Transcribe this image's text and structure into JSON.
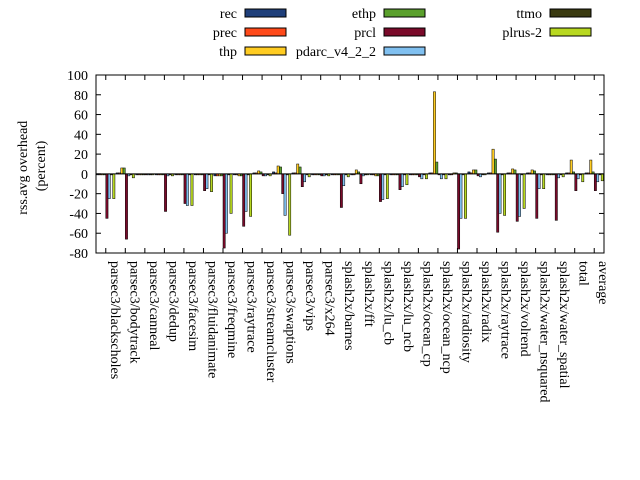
{
  "chart_data": {
    "type": "bar",
    "ylabel": "rss.avg overhead\n(percent)",
    "xlabel": "",
    "title": "",
    "ylim": [
      -80,
      100
    ],
    "yticks": [
      -80,
      -60,
      -40,
      -20,
      0,
      20,
      40,
      60,
      80,
      100
    ],
    "grid": false,
    "legend_position": "top",
    "categories": [
      "parsec3/blackscholes",
      "parsec3/bodytrack",
      "parsec3/canneal",
      "parsec3/dedup",
      "parsec3/facesim",
      "parsec3/fluidanimate",
      "parsec3/freqmine",
      "parsec3/raytrace",
      "parsec3/streamcluster",
      "parsec3/swaptions",
      "parsec3/vips",
      "parsec3/x264",
      "splash2x/barnes",
      "splash2x/fft",
      "splash2x/lu_cb",
      "splash2x/lu_ncb",
      "splash2x/ocean_cp",
      "splash2x/ocean_ncp",
      "splash2x/radiosity",
      "splash2x/radix",
      "splash2x/raytrace",
      "splash2x/volrend",
      "splash2x/water_nsquared",
      "splash2x/water_spatial",
      "total",
      "average"
    ],
    "series": [
      {
        "name": "rec",
        "color": "#1f3f7a",
        "values": [
          -1,
          1,
          -1,
          -1,
          -1,
          -1,
          -2,
          -1,
          1,
          2,
          1,
          -1,
          -1,
          -1,
          -1,
          -1,
          -1,
          1,
          -1,
          2,
          1,
          1,
          1,
          -1,
          1,
          1
        ]
      },
      {
        "name": "prec",
        "color": "#ff4a1a",
        "values": [
          -1,
          1,
          -1,
          -1,
          -1,
          -1,
          -2,
          -1,
          1,
          1,
          1,
          -1,
          -1,
          -1,
          -1,
          -1,
          -1,
          1,
          -1,
          1,
          1,
          1,
          1,
          -1,
          1,
          1
        ]
      },
      {
        "name": "thp",
        "color": "#ffcc22",
        "values": [
          -1,
          6,
          -1,
          -1,
          -1,
          -1,
          -2,
          -2,
          3,
          8,
          10,
          -1,
          -1,
          4,
          -2,
          -1,
          -1,
          83,
          1,
          4,
          25,
          5,
          4,
          -1,
          14,
          14
        ]
      },
      {
        "name": "ethp",
        "color": "#5aa02c",
        "values": [
          -1,
          6,
          -1,
          -1,
          -1,
          -1,
          -2,
          -2,
          2,
          7,
          7,
          -1,
          -1,
          2,
          -2,
          -1,
          -1,
          12,
          1,
          4,
          15,
          4,
          3,
          -1,
          2,
          2
        ]
      },
      {
        "name": "prcl",
        "color": "#7a0a2a",
        "values": [
          -45,
          -66,
          -1,
          -38,
          -30,
          -17,
          -75,
          -53,
          -2,
          -20,
          -13,
          -2,
          -34,
          -10,
          -28,
          -16,
          -3,
          -1,
          -76,
          -2,
          -59,
          -48,
          -45,
          -47,
          -17,
          -17
        ]
      },
      {
        "name": "pdarc_v4_2_2",
        "color": "#80c0f0",
        "values": [
          -25,
          -2,
          -1,
          -2,
          -32,
          -15,
          -60,
          -38,
          -2,
          -42,
          -8,
          -2,
          -12,
          -2,
          -26,
          -13,
          -5,
          -5,
          -45,
          -3,
          -40,
          -43,
          -15,
          -4,
          -5,
          -8
        ]
      },
      {
        "name": "ttmo",
        "color": "#3a3a10",
        "values": [
          -1,
          -1,
          -1,
          -1,
          -1,
          -1,
          -1,
          -1,
          -1,
          -1,
          -1,
          -1,
          -1,
          -1,
          -1,
          -1,
          -1,
          -1,
          -1,
          -1,
          -1,
          -1,
          -1,
          -1,
          -1,
          -1
        ]
      },
      {
        "name": "plrus-2",
        "color": "#b8d820",
        "values": [
          -25,
          -4,
          -1,
          -2,
          -32,
          -18,
          -40,
          -43,
          -2,
          -62,
          -3,
          -2,
          -3,
          -1,
          -25,
          -11,
          -5,
          -5,
          -45,
          -1,
          -42,
          -35,
          -15,
          -3,
          -8,
          -7
        ]
      }
    ]
  }
}
